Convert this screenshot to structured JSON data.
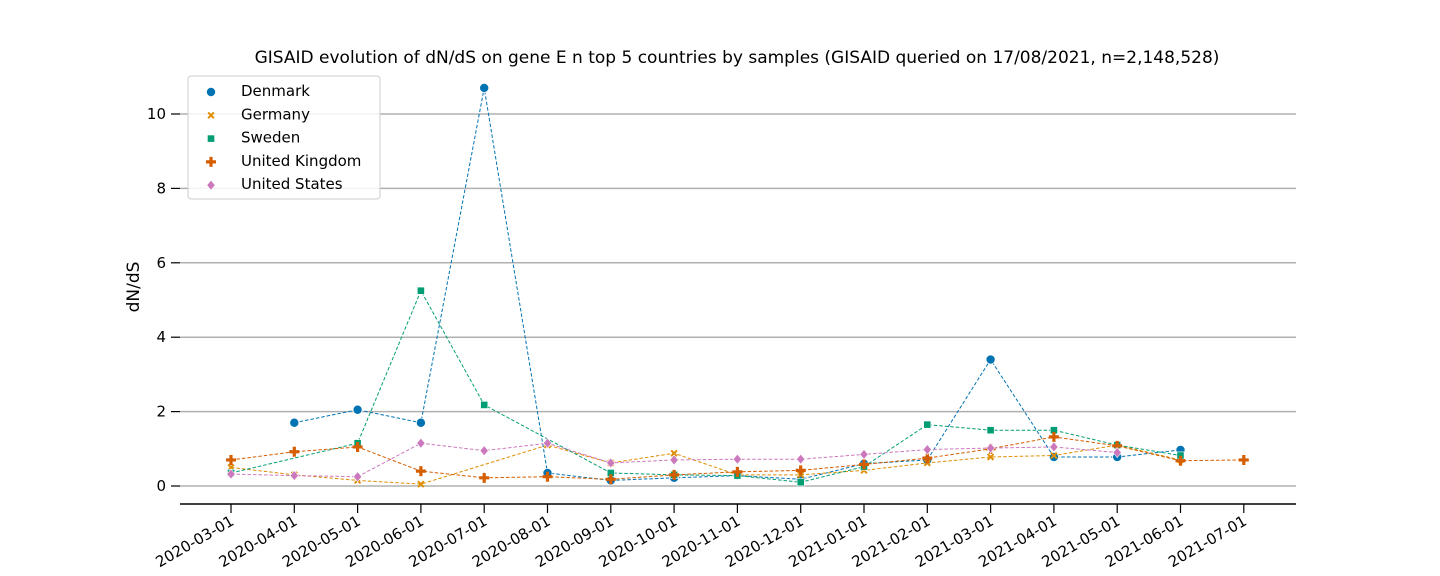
{
  "chart_data": {
    "type": "line",
    "title": "GISAID evolution of dN/dS on gene E n top 5 countries by samples (GISAID queried on 17/08/2021, n=2,148,528)",
    "xlabel": "",
    "ylabel": "dN/dS",
    "ylim": [
      -0.5,
      11.2
    ],
    "yticks": [
      0,
      2,
      4,
      6,
      8,
      10
    ],
    "ytick_labels": [
      "0",
      "2",
      "4",
      "6",
      "8",
      "10"
    ],
    "grid": "horizontal",
    "legend_position": "top-left",
    "categories": [
      "2020-03-01",
      "2020-04-01",
      "2020-05-01",
      "2020-06-01",
      "2020-07-01",
      "2020-08-01",
      "2020-09-01",
      "2020-10-01",
      "2020-11-01",
      "2020-12-01",
      "2021-01-01",
      "2021-02-01",
      "2021-03-01",
      "2021-04-01",
      "2021-05-01",
      "2021-06-01",
      "2021-07-01"
    ],
    "series": [
      {
        "name": "Denmark",
        "color": "#0173b2",
        "marker": "circle",
        "values": [
          null,
          1.7,
          2.05,
          1.7,
          10.7,
          0.35,
          0.15,
          0.22,
          0.28,
          0.18,
          0.6,
          0.7,
          3.4,
          0.78,
          0.78,
          0.97,
          null
        ]
      },
      {
        "name": "Germany",
        "color": "#de8f05",
        "marker": "x",
        "values": [
          0.5,
          0.3,
          0.15,
          0.05,
          null,
          1.1,
          0.62,
          0.88,
          0.3,
          0.3,
          0.42,
          0.62,
          0.78,
          0.82,
          1.1,
          0.7,
          null
        ]
      },
      {
        "name": "Sweden",
        "color": "#029e73",
        "marker": "square",
        "values": [
          0.35,
          null,
          1.15,
          5.25,
          2.18,
          null,
          0.35,
          0.3,
          0.28,
          0.1,
          0.52,
          1.65,
          1.5,
          1.5,
          1.1,
          0.82,
          null
        ]
      },
      {
        "name": "United Kingdom",
        "color": "#d55e00",
        "marker": "plus",
        "values": [
          0.7,
          0.92,
          1.05,
          0.4,
          0.22,
          0.25,
          0.18,
          0.3,
          0.38,
          0.42,
          0.58,
          0.75,
          1.0,
          1.32,
          1.08,
          0.68,
          0.7
        ]
      },
      {
        "name": "United States",
        "color": "#cc78bc",
        "marker": "diamond",
        "values": [
          0.32,
          0.28,
          0.25,
          1.15,
          0.95,
          1.15,
          0.62,
          0.7,
          0.72,
          0.72,
          0.85,
          0.98,
          1.02,
          1.05,
          0.9,
          null,
          null
        ]
      }
    ]
  }
}
